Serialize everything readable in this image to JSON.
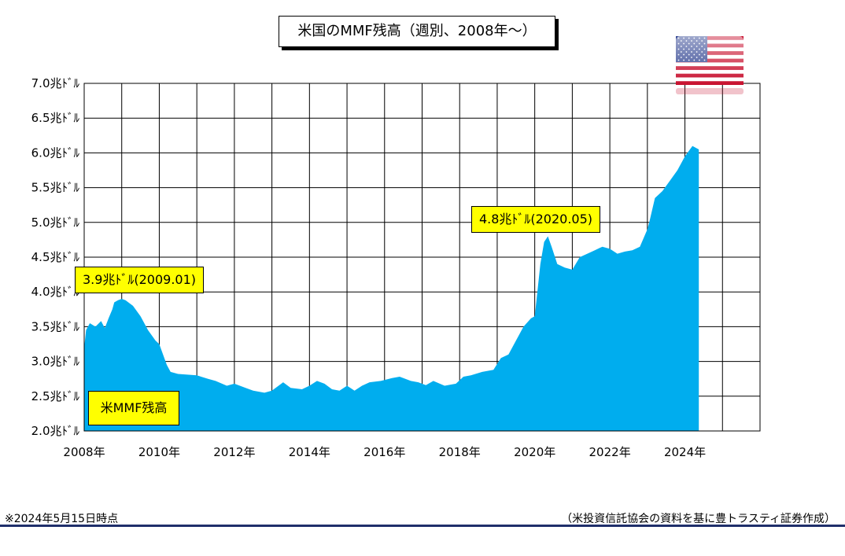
{
  "chart_data": {
    "type": "area",
    "title": "米国のMMF残高（週別、2008年～）",
    "legend": "米MMF残高",
    "legend_placement": "bottom-left inside",
    "ylim": [
      2.0,
      7.0
    ],
    "xlim": [
      2008.0,
      2026.0
    ],
    "grid": true,
    "y_ticks": [
      {
        "value": 2.0,
        "label": "2.0兆ﾄﾞﾙ"
      },
      {
        "value": 2.5,
        "label": "2.5兆ﾄﾞﾙ"
      },
      {
        "value": 3.0,
        "label": "3.0兆ﾄﾞﾙ"
      },
      {
        "value": 3.5,
        "label": "3.5兆ﾄﾞﾙ"
      },
      {
        "value": 4.0,
        "label": "4.0兆ﾄﾞﾙ"
      },
      {
        "value": 4.5,
        "label": "4.5兆ﾄﾞﾙ"
      },
      {
        "value": 5.0,
        "label": "5.0兆ﾄﾞﾙ"
      },
      {
        "value": 5.5,
        "label": "5.5兆ﾄﾞﾙ"
      },
      {
        "value": 6.0,
        "label": "6.0兆ﾄﾞﾙ"
      },
      {
        "value": 6.5,
        "label": "6.5兆ﾄﾞﾙ"
      },
      {
        "value": 7.0,
        "label": "7.0兆ﾄﾞﾙ"
      }
    ],
    "x_ticks": [
      {
        "value": 2008,
        "label": "2008年"
      },
      {
        "value": 2010,
        "label": "2010年"
      },
      {
        "value": 2012,
        "label": "2012年"
      },
      {
        "value": 2014,
        "label": "2014年"
      },
      {
        "value": 2016,
        "label": "2016年"
      },
      {
        "value": 2018,
        "label": "2018年"
      },
      {
        "value": 2020,
        "label": "2020年"
      },
      {
        "value": 2022,
        "label": "2022年"
      },
      {
        "value": 2024,
        "label": "2024年"
      }
    ],
    "x": [
      2008.0,
      2008.05,
      2008.15,
      2008.3,
      2008.45,
      2008.55,
      2008.65,
      2008.75,
      2008.8,
      2008.9,
      2009.0,
      2009.1,
      2009.3,
      2009.5,
      2009.7,
      2009.9,
      2010.0,
      2010.2,
      2010.3,
      2010.5,
      2011.0,
      2011.3,
      2011.5,
      2011.8,
      2012.0,
      2012.3,
      2012.5,
      2012.8,
      2013.0,
      2013.3,
      2013.5,
      2013.8,
      2014.0,
      2014.2,
      2014.4,
      2014.6,
      2014.8,
      2015.0,
      2015.2,
      2015.4,
      2015.6,
      2015.9,
      2016.2,
      2016.4,
      2016.7,
      2016.9,
      2017.1,
      2017.3,
      2017.6,
      2017.9,
      2018.1,
      2018.3,
      2018.6,
      2018.9,
      2019.1,
      2019.3,
      2019.5,
      2019.7,
      2019.9,
      2020.0,
      2020.15,
      2020.25,
      2020.35,
      2020.45,
      2020.6,
      2020.8,
      2021.0,
      2021.2,
      2021.4,
      2021.6,
      2021.8,
      2022.0,
      2022.2,
      2022.4,
      2022.6,
      2022.8,
      2023.0,
      2023.05,
      2023.2,
      2023.4,
      2023.6,
      2023.8,
      2024.0,
      2024.2,
      2024.37
    ],
    "series": [
      {
        "values": [
          3.2,
          3.45,
          3.55,
          3.5,
          3.58,
          3.48,
          3.62,
          3.75,
          3.85,
          3.88,
          3.9,
          3.88,
          3.8,
          3.65,
          3.45,
          3.3,
          3.25,
          2.95,
          2.85,
          2.82,
          2.8,
          2.75,
          2.72,
          2.65,
          2.68,
          2.62,
          2.58,
          2.55,
          2.58,
          2.7,
          2.62,
          2.6,
          2.65,
          2.72,
          2.68,
          2.6,
          2.58,
          2.65,
          2.58,
          2.65,
          2.7,
          2.72,
          2.76,
          2.78,
          2.72,
          2.7,
          2.66,
          2.72,
          2.65,
          2.68,
          2.78,
          2.8,
          2.85,
          2.88,
          3.05,
          3.1,
          3.3,
          3.5,
          3.62,
          3.65,
          4.4,
          4.72,
          4.8,
          4.65,
          4.4,
          4.35,
          4.32,
          4.5,
          4.55,
          4.6,
          4.65,
          4.62,
          4.55,
          4.58,
          4.6,
          4.65,
          4.9,
          5.0,
          5.35,
          5.45,
          5.6,
          5.75,
          5.95,
          6.1,
          6.05
        ]
      }
    ],
    "annotations": [
      {
        "x": 2009.0,
        "y": 3.9,
        "text": "3.9兆ﾄﾞﾙ(2009.01)"
      },
      {
        "x": 2020.35,
        "y": 4.8,
        "text": "4.8兆ﾄﾞﾙ(2020.05)"
      }
    ],
    "fill_color": "#00adee"
  },
  "footnote_left": "※2024年5月15日時点",
  "footnote_right": "（米投資信託協会の資料を基に豊トラスティ証券作成）",
  "flag_icon": "us-flag-icon"
}
